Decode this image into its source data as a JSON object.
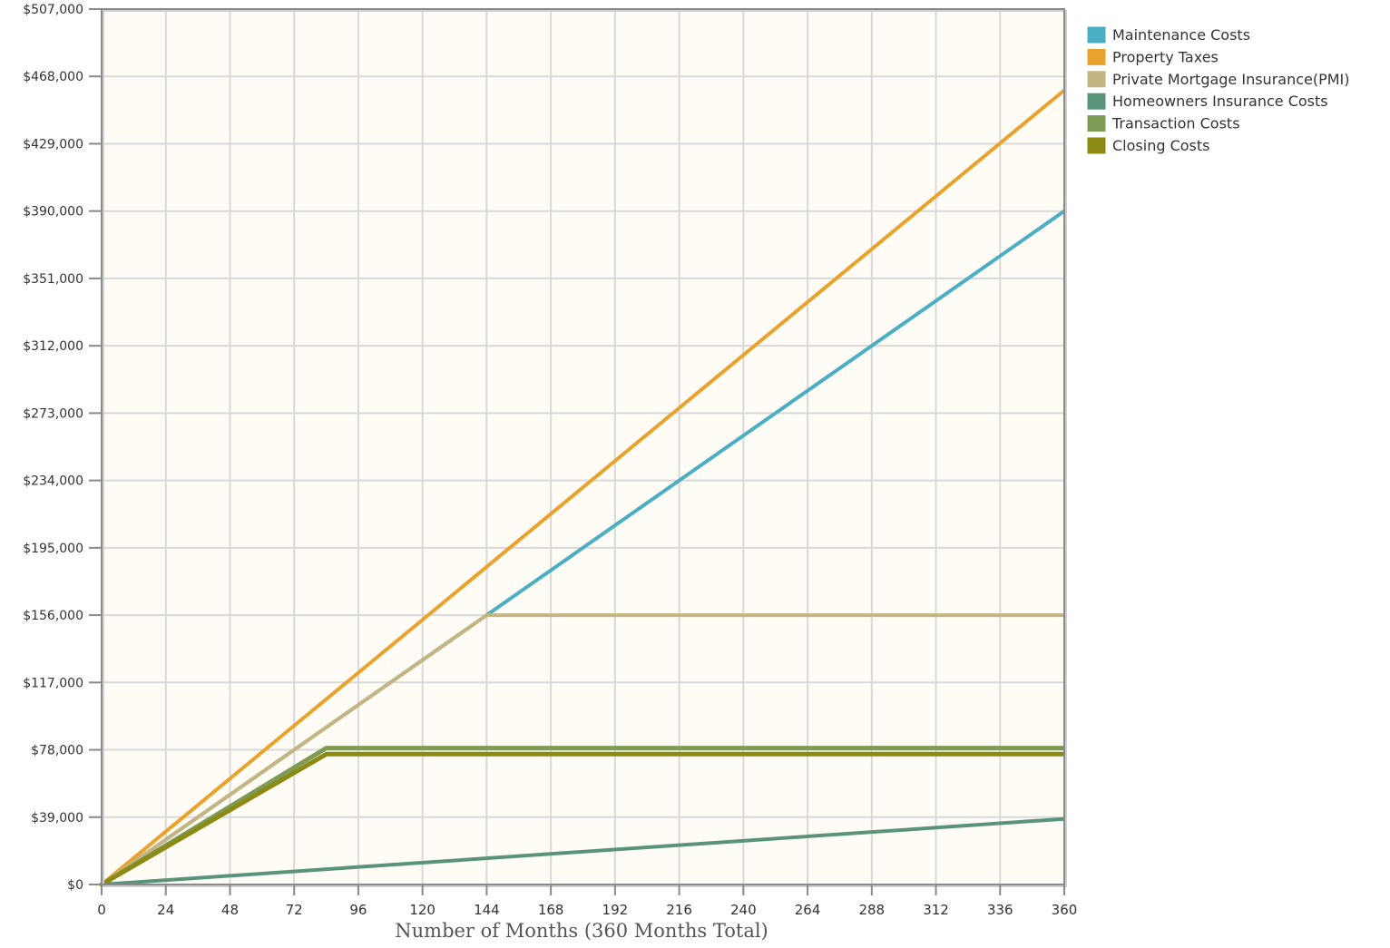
{
  "chart_data": {
    "type": "line",
    "xlabel": "Number of Months (360 Months Total)",
    "ylabel": "",
    "xlim": [
      0,
      360
    ],
    "ylim": [
      0,
      507000
    ],
    "x_ticks": [
      0,
      24,
      48,
      72,
      96,
      120,
      144,
      168,
      192,
      216,
      240,
      264,
      288,
      312,
      336,
      360
    ],
    "y_ticks": [
      0,
      39000,
      78000,
      117000,
      156000,
      195000,
      234000,
      273000,
      312000,
      351000,
      390000,
      429000,
      468000,
      507000
    ],
    "y_tick_labels": [
      "$0",
      "$39,000",
      "$78,000",
      "$117,000",
      "$156,000",
      "$195,000",
      "$234,000",
      "$273,000",
      "$312,000",
      "$351,000",
      "$390,000",
      "$429,000",
      "$468,000",
      "$507,000"
    ],
    "grid": true,
    "legend_position": "right",
    "series": [
      {
        "name": "Maintenance Costs",
        "color": "#4AAFC3",
        "points": [
          [
            0,
            0
          ],
          [
            360,
            390000
          ]
        ]
      },
      {
        "name": "Property Taxes",
        "color": "#E9A22C",
        "points": [
          [
            0,
            0
          ],
          [
            360,
            460000
          ]
        ]
      },
      {
        "name": "Private Mortgage Insurance(PMI)",
        "color": "#C4B582",
        "points": [
          [
            0,
            0
          ],
          [
            144,
            156000
          ],
          [
            360,
            156000
          ]
        ]
      },
      {
        "name": "Homeowners Insurance Costs",
        "color": "#5A9478",
        "points": [
          [
            0,
            0
          ],
          [
            360,
            38000
          ]
        ]
      },
      {
        "name": "Transaction Costs",
        "color": "#7F9A55",
        "points": [
          [
            0,
            0
          ],
          [
            84,
            79000
          ],
          [
            360,
            79000
          ]
        ]
      },
      {
        "name": "Closing Costs",
        "color": "#8C8A13",
        "points": [
          [
            0,
            0
          ],
          [
            84,
            75500
          ],
          [
            360,
            75500
          ]
        ]
      }
    ]
  },
  "colors": {
    "plot_background": "#FEFCF4",
    "grid": "#D9D9D9",
    "axis": "#8A8A8A"
  }
}
